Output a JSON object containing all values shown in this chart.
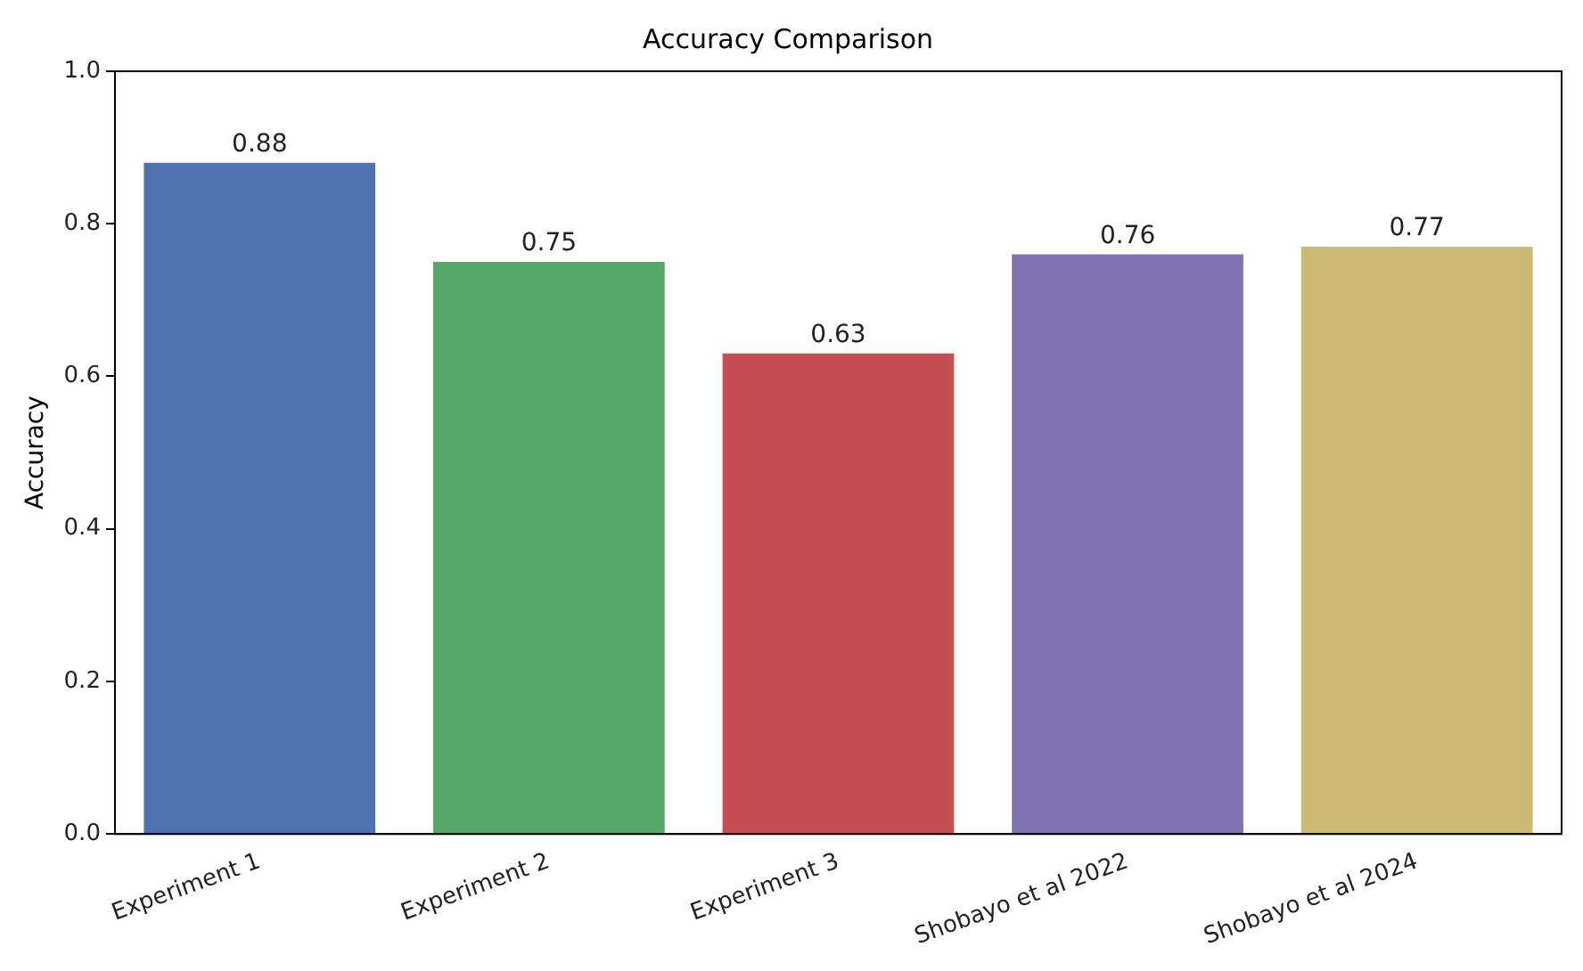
{
  "chart_data": {
    "type": "bar",
    "title": "Accuracy Comparison",
    "ylabel": "Accuracy",
    "categories": [
      "Experiment 1",
      "Experiment 2",
      "Experiment 3",
      "Shobayo et al 2022",
      "Shobayo et al 2024"
    ],
    "values": [
      0.88,
      0.75,
      0.63,
      0.76,
      0.77
    ],
    "colors": [
      "#4c72b0",
      "#55a868",
      "#c44e52",
      "#8172b2",
      "#ccb974"
    ],
    "ylim": [
      0,
      1
    ],
    "yticks": [
      {
        "value": 0,
        "label": "0.0"
      },
      {
        "value": 0.2,
        "label": "0.2"
      },
      {
        "value": 0.4,
        "label": "0.4"
      },
      {
        "value": 0.6,
        "label": "0.6"
      },
      {
        "value": 0.8,
        "label": "0.8"
      },
      {
        "value": 1,
        "label": "1.0"
      }
    ],
    "data_labels": true,
    "grid": false,
    "legend": false
  }
}
